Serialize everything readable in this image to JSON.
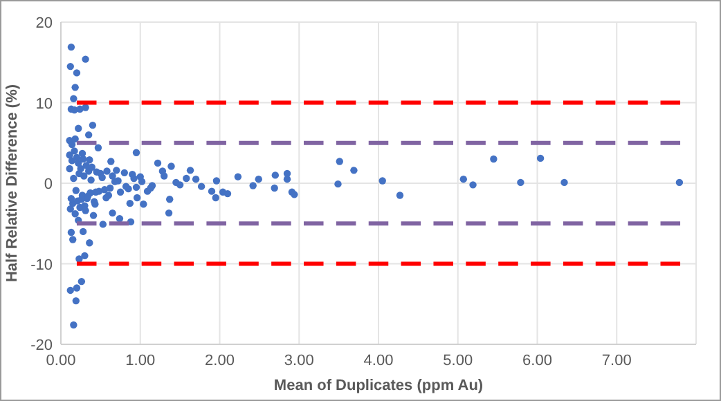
{
  "chart_data": {
    "type": "scatter",
    "xlabel": "Mean of Duplicates (ppm Au)",
    "ylabel": "Half Relative Difference (%)",
    "xlim": [
      0,
      8
    ],
    "xticks": [
      {
        "value": 0,
        "label": "0.00"
      },
      {
        "value": 1,
        "label": "1.00"
      },
      {
        "value": 2,
        "label": "2.00"
      },
      {
        "value": 3,
        "label": "3.00"
      },
      {
        "value": 4,
        "label": "4.00"
      },
      {
        "value": 5,
        "label": "5.00"
      },
      {
        "value": 6,
        "label": "6.00"
      },
      {
        "value": 7,
        "label": "7.00"
      },
      {
        "value": 8,
        "label": null
      }
    ],
    "ylim": [
      -20,
      20
    ],
    "yticks": [
      -20,
      -10,
      0,
      10,
      20
    ],
    "grid": true,
    "marker": "circle",
    "series": [
      {
        "color": "#4472c4",
        "x": [
          0.13,
          0.31,
          0.12,
          0.2,
          0.18,
          0.16,
          0.13,
          0.17,
          0.24,
          0.31,
          0.4,
          0.22,
          0.11,
          0.35,
          0.47,
          0.63,
          0.95,
          1.22,
          1.39,
          1.28,
          1.63,
          1.58,
          1.77,
          1.96,
          1.9,
          1.95,
          2.04,
          2.1,
          2.23,
          2.42,
          2.49,
          2.69,
          2.7,
          2.85,
          2.85,
          2.91,
          2.94,
          3.49,
          3.51,
          3.69,
          4.05,
          4.27,
          5.07,
          5.19,
          5.45,
          5.79,
          6.04,
          6.34,
          7.79,
          0.16,
          0.12,
          0.2,
          0.19,
          0.26,
          0.23,
          0.3,
          0.28,
          0.15,
          0.36,
          0.13,
          0.41,
          0.53,
          0.74,
          0.88,
          0.65,
          0.96,
          1.04,
          1.37,
          1.36,
          0.87,
          1.09,
          1.13,
          0.11,
          0.12,
          0.14,
          0.15,
          0.17,
          0.18,
          0.2,
          0.21,
          0.22,
          0.24,
          0.25,
          0.27,
          0.28,
          0.3,
          0.32,
          0.33,
          0.35,
          0.37,
          0.39,
          0.42,
          0.45,
          0.48,
          0.5,
          0.55,
          0.58,
          0.6,
          0.65,
          0.7,
          0.75,
          0.8,
          0.85,
          0.9,
          0.95,
          1.0,
          0.11,
          0.13,
          0.16,
          0.19,
          0.23,
          0.26,
          0.29,
          0.34,
          0.38,
          0.44,
          0.52,
          0.62,
          0.72,
          0.82,
          0.92,
          1.02,
          1.15,
          1.3,
          1.45,
          1.5,
          1.7,
          0.14,
          0.18,
          0.22,
          0.27,
          0.31,
          0.36,
          0.43,
          0.57,
          0.68
        ],
        "values": [
          16.9,
          15.4,
          14.5,
          13.7,
          11.9,
          10.5,
          9.2,
          9.1,
          9.2,
          9.4,
          7.2,
          6.8,
          5.3,
          6.0,
          4.4,
          2.7,
          3.8,
          2.5,
          2.1,
          1.5,
          1.6,
          0.6,
          -0.4,
          0.3,
          -1.0,
          -1.8,
          -1.1,
          -1.3,
          0.8,
          -0.3,
          0.5,
          -0.6,
          1.0,
          1.2,
          0.5,
          -1.1,
          -1.4,
          -0.1,
          2.7,
          1.6,
          0.3,
          -1.5,
          0.5,
          -0.2,
          3.0,
          0.1,
          3.1,
          0.1,
          0.1,
          -17.6,
          -13.3,
          -13.0,
          -14.6,
          -12.2,
          -9.4,
          -9.0,
          -6.0,
          -7.0,
          -7.4,
          -6.1,
          -4.0,
          -5.1,
          -4.4,
          -4.8,
          -3.7,
          -1.8,
          -2.6,
          -2.0,
          -3.7,
          -2.5,
          -1.0,
          -0.6,
          3.5,
          -3.2,
          2.8,
          -2.5,
          4.0,
          -3.8,
          3.2,
          -2.2,
          2.5,
          -3.0,
          1.8,
          -1.5,
          3.0,
          -2.8,
          2.2,
          -1.9,
          1.5,
          -1.2,
          2.0,
          -2.3,
          1.4,
          -1.0,
          1.2,
          -0.8,
          1.5,
          -1.5,
          0.9,
          1.6,
          -1.1,
          1.3,
          -0.7,
          1.1,
          -0.5,
          0.8,
          1.8,
          -1.9,
          0.6,
          -0.9,
          1.2,
          -2.0,
          0.9,
          -1.6,
          0.4,
          -1.1,
          0.7,
          -0.6,
          0.3,
          -0.4,
          0.6,
          0.2,
          -0.3,
          0.9,
          0.1,
          -0.2,
          0.5,
          4.8,
          5.5,
          -4.6,
          3.7,
          -3.4,
          2.9,
          -2.6,
          -1.8,
          0.2
        ]
      },
      {
        "type": "line",
        "color": "#ff0000",
        "line_style": "dashed",
        "marker": "none",
        "x": [
          0.2,
          7.8
        ],
        "values": [
          10,
          10
        ]
      },
      {
        "type": "line",
        "color": "#8064a2",
        "line_style": "dashed",
        "marker": "none",
        "x": [
          0.2,
          7.8
        ],
        "values": [
          5,
          5
        ]
      },
      {
        "type": "line",
        "color": "#8064a2",
        "line_style": "dashed",
        "marker": "none",
        "x": [
          0.2,
          7.8
        ],
        "values": [
          -5,
          -5
        ]
      },
      {
        "type": "line",
        "color": "#ff0000",
        "line_style": "dashed",
        "marker": "none",
        "x": [
          0.2,
          7.8
        ],
        "values": [
          -10,
          -10
        ]
      }
    ]
  }
}
